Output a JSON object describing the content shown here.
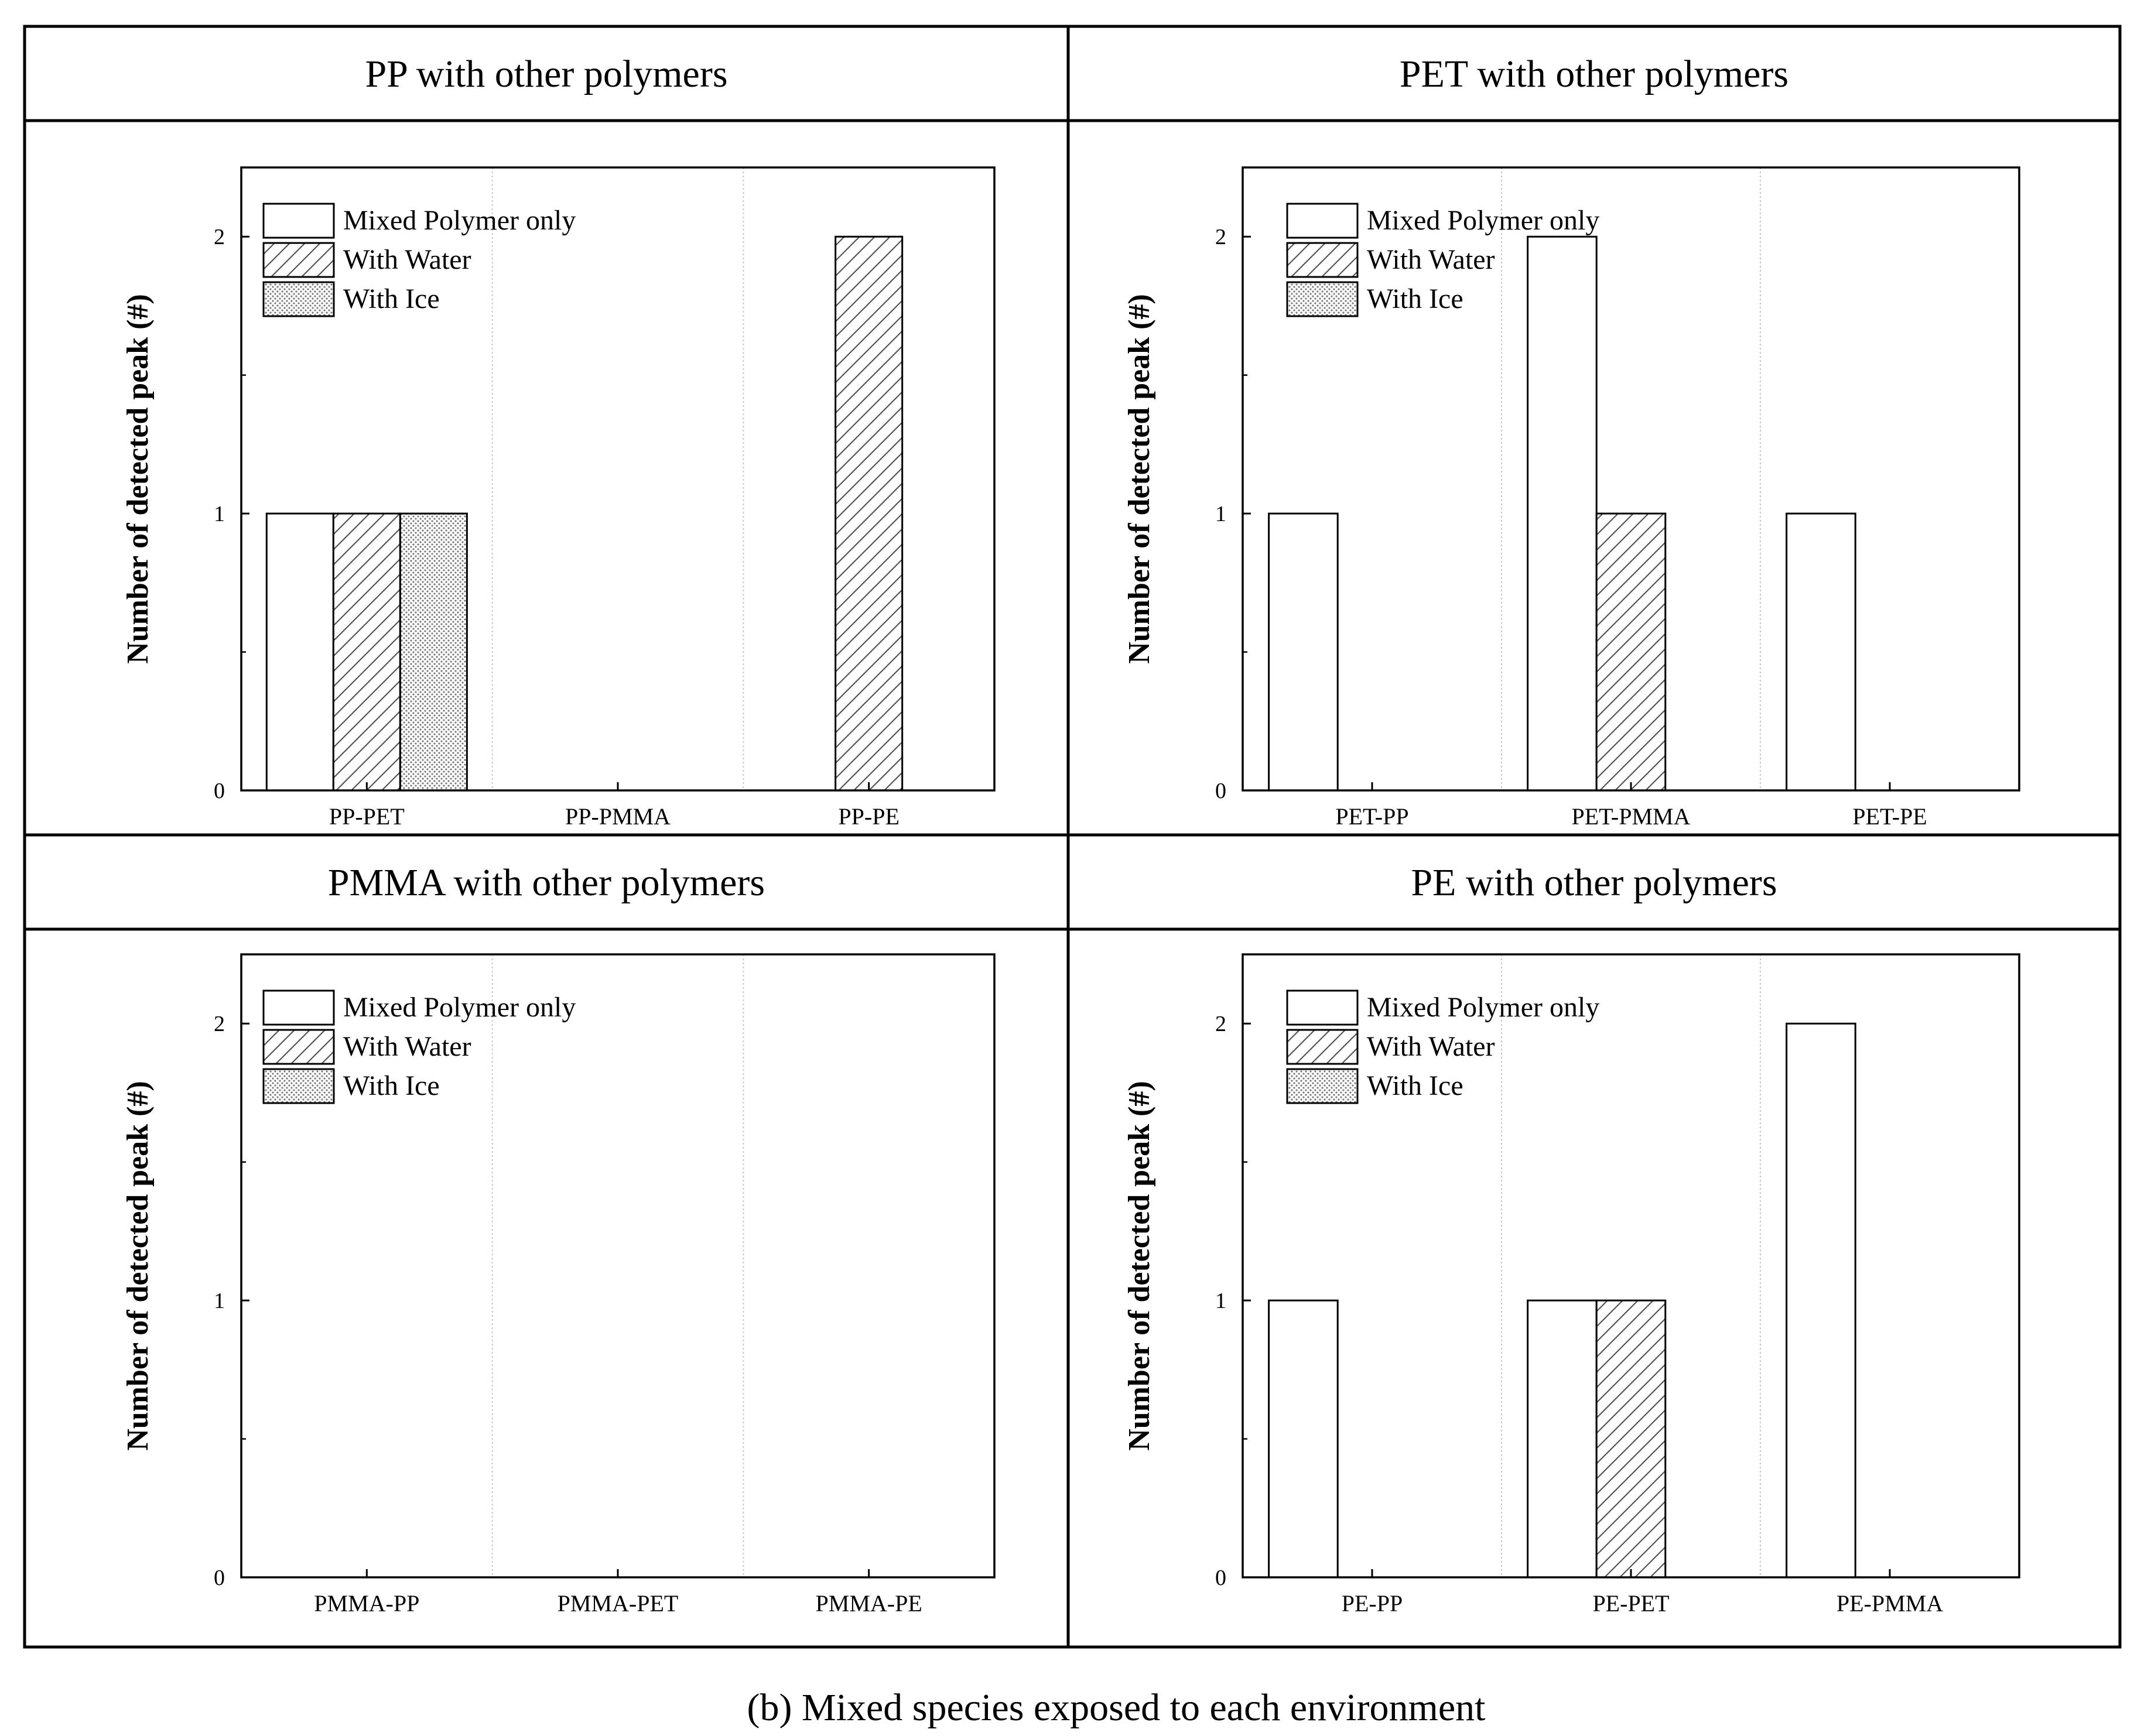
{
  "caption": "(b) Mixed species exposed to each environment",
  "colors": {
    "line": "#000000",
    "grid": "#c8c8c8",
    "fill": "#ffffff",
    "dot": "#7a7a7a"
  },
  "legend": [
    "Mixed Polymer only",
    "With Water",
    "With Ice"
  ],
  "chart_data": [
    {
      "type": "bar",
      "title": "PP with other polymers",
      "categories": [
        "PP-PET",
        "PP-PMMA",
        "PP-PE"
      ],
      "series": [
        {
          "name": "Mixed Polymer only",
          "pattern": "none",
          "values": [
            1,
            0,
            0
          ]
        },
        {
          "name": "With Water",
          "pattern": "hatch",
          "values": [
            1,
            0,
            2
          ]
        },
        {
          "name": "With Ice",
          "pattern": "dots",
          "values": [
            1,
            0,
            0
          ]
        }
      ],
      "xlabel": "",
      "ylabel": "Number of detected peak (#)",
      "ylim": [
        0,
        2.25
      ],
      "yticks": [
        "0",
        "1",
        "2"
      ],
      "legend_position": "top-left"
    },
    {
      "type": "bar",
      "title": "PET with other polymers",
      "categories": [
        "PET-PP",
        "PET-PMMA",
        "PET-PE"
      ],
      "series": [
        {
          "name": "Mixed Polymer only",
          "pattern": "none",
          "values": [
            1,
            2,
            1
          ]
        },
        {
          "name": "With Water",
          "pattern": "hatch",
          "values": [
            0,
            1,
            0
          ]
        },
        {
          "name": "With Ice",
          "pattern": "dots",
          "values": [
            0,
            0,
            0
          ]
        }
      ],
      "xlabel": "",
      "ylabel": "Number of detected peak (#)",
      "ylim": [
        0,
        2.25
      ],
      "yticks": [
        "0",
        "1",
        "2"
      ],
      "legend_position": "top-left"
    },
    {
      "type": "bar",
      "title": "PMMA with other polymers",
      "categories": [
        "PMMA-PP",
        "PMMA-PET",
        "PMMA-PE"
      ],
      "series": [
        {
          "name": "Mixed Polymer only",
          "pattern": "none",
          "values": [
            0,
            0,
            0
          ]
        },
        {
          "name": "With Water",
          "pattern": "hatch",
          "values": [
            0,
            0,
            0
          ]
        },
        {
          "name": "With Ice",
          "pattern": "dots",
          "values": [
            0,
            0,
            0
          ]
        }
      ],
      "xlabel": "",
      "ylabel": "Number of detected peak (#)",
      "ylim": [
        0,
        2.25
      ],
      "yticks": [
        "0",
        "1",
        "2"
      ],
      "legend_position": "top-left"
    },
    {
      "type": "bar",
      "title": "PE with other polymers",
      "categories": [
        "PE-PP",
        "PE-PET",
        "PE-PMMA"
      ],
      "series": [
        {
          "name": "Mixed Polymer only",
          "pattern": "none",
          "values": [
            1,
            1,
            2
          ]
        },
        {
          "name": "With Water",
          "pattern": "hatch",
          "values": [
            0,
            1,
            0
          ]
        },
        {
          "name": "With Ice",
          "pattern": "dots",
          "values": [
            0,
            0,
            0
          ]
        }
      ],
      "xlabel": "",
      "ylabel": "Number of detected peak (#)",
      "ylim": [
        0,
        2.25
      ],
      "yticks": [
        "0",
        "1",
        "2"
      ],
      "legend_position": "top-left"
    }
  ]
}
